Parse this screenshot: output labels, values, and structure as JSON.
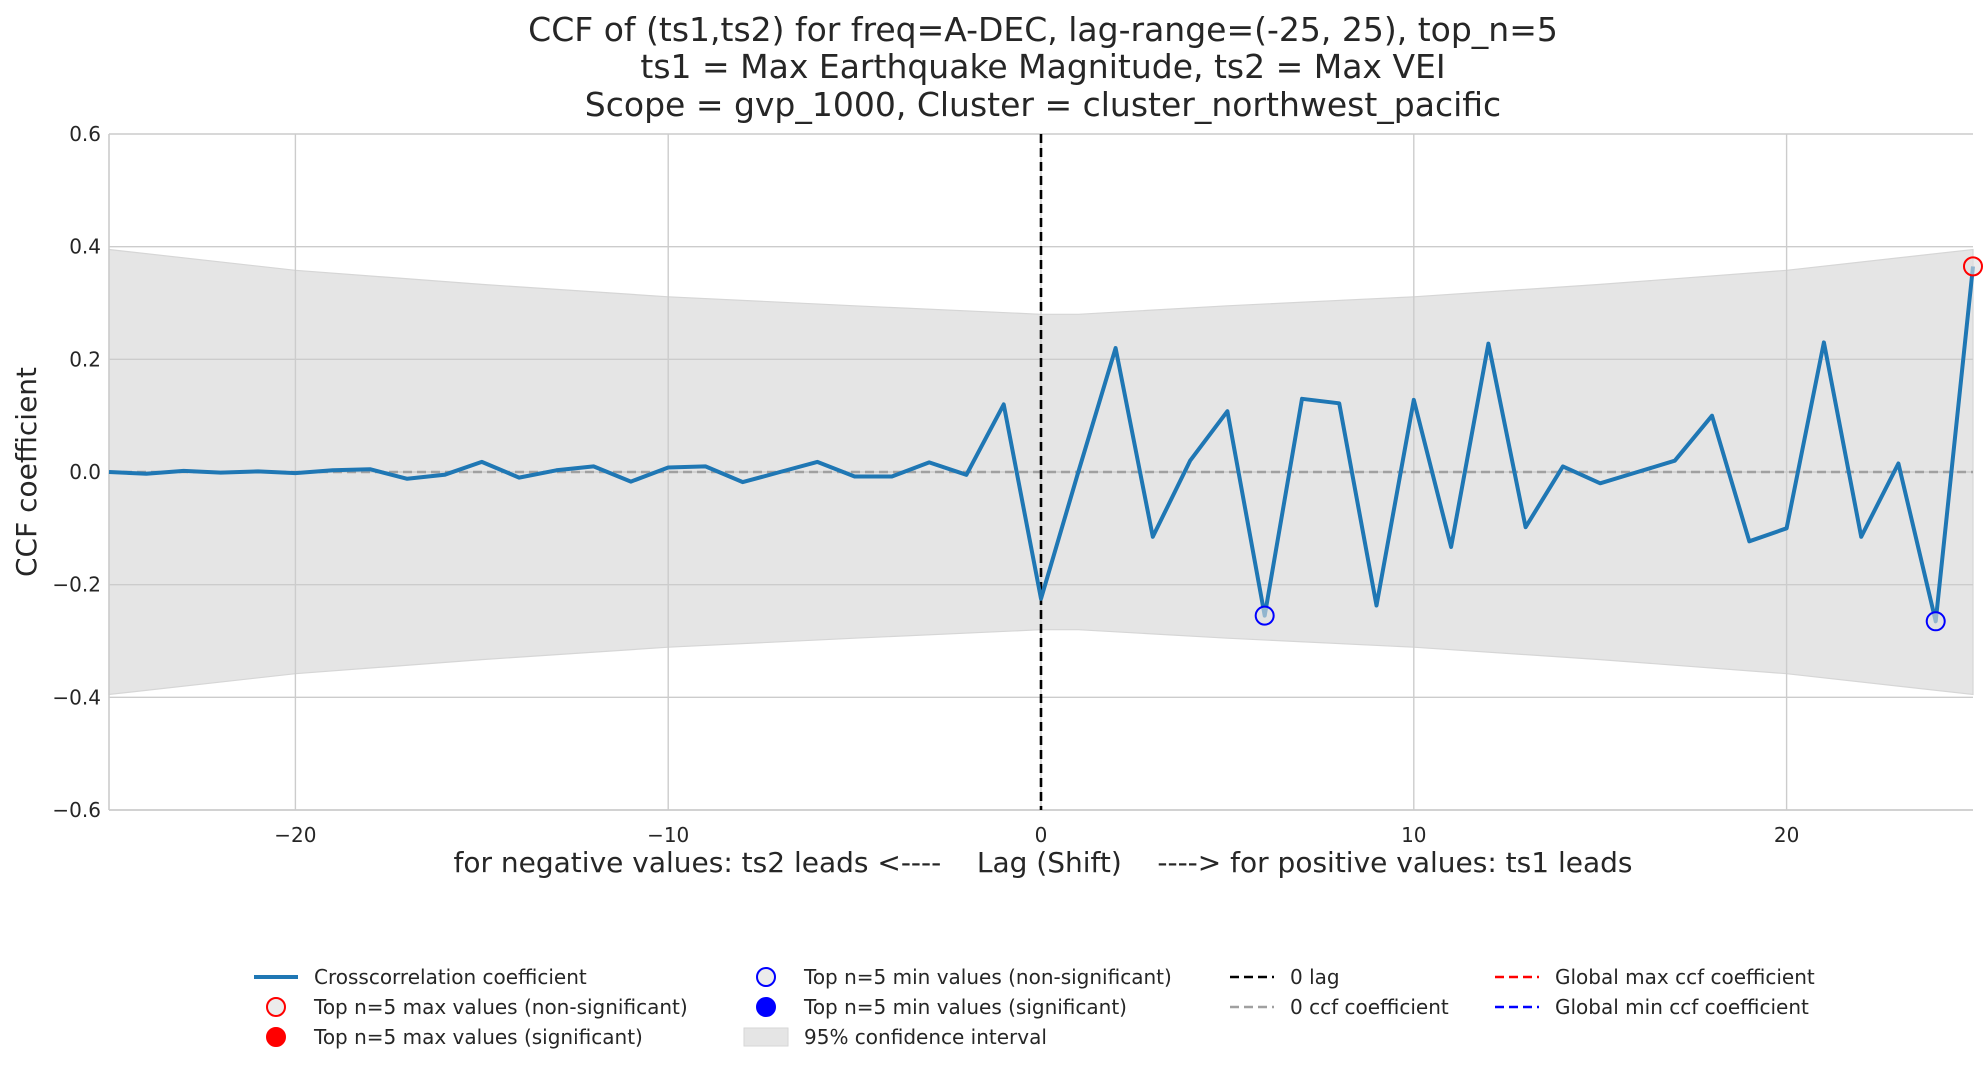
{
  "chart_data": {
    "type": "line",
    "title_lines": [
      "CCF of (ts1,ts2) for freq=A-DEC, lag-range=(-25, 25), top_n=5",
      "ts1 = Max Earthquake Magnitude, ts2 = Max VEI",
      "Scope = gvp_1000, Cluster = cluster_northwest_pacific"
    ],
    "xlabel": "for negative values: ts2 leads <----    Lag (Shift)    ----> for positive values: ts1 leads",
    "ylabel": "CCF coefficient",
    "xlim": [
      -25,
      25
    ],
    "ylim": [
      -0.6,
      0.6
    ],
    "xticks": [
      -20,
      -10,
      0,
      10,
      20
    ],
    "xtick_labels": [
      "−20",
      "−10",
      "0",
      "10",
      "20"
    ],
    "yticks": [
      -0.6,
      -0.4,
      -0.2,
      0.0,
      0.2,
      0.4,
      0.6
    ],
    "ytick_labels": [
      "−0.6",
      "−0.4",
      "−0.2",
      "0.0",
      "0.2",
      "0.4",
      "0.6"
    ],
    "grid": true,
    "legend_placement": "bottom-center",
    "series": [
      {
        "name": "Crosscorrelation coefficient",
        "color": "#1f77b4",
        "x": [
          -25,
          -24,
          -23,
          -22,
          -21,
          -20,
          -19,
          -18,
          -17,
          -16,
          -15,
          -14,
          -13,
          -12,
          -11,
          -10,
          -9,
          -8,
          -7,
          -6,
          -5,
          -4,
          -3,
          -2,
          -1,
          0,
          1,
          2,
          3,
          4,
          5,
          6,
          7,
          8,
          9,
          10,
          11,
          12,
          13,
          14,
          15,
          16,
          17,
          18,
          19,
          20,
          21,
          22,
          23,
          24,
          25
        ],
        "values": [
          0.0,
          -0.003,
          0.002,
          -0.001,
          0.001,
          -0.002,
          0.003,
          0.005,
          -0.012,
          -0.005,
          0.018,
          -0.01,
          0.003,
          0.01,
          -0.017,
          0.008,
          0.01,
          -0.018,
          0.0,
          0.018,
          -0.008,
          -0.008,
          0.017,
          -0.005,
          0.12,
          -0.225,
          0.0,
          0.22,
          -0.115,
          0.02,
          0.108,
          -0.255,
          0.13,
          0.122,
          -0.237,
          0.128,
          -0.133,
          0.228,
          -0.098,
          0.01,
          -0.02,
          0.0,
          0.02,
          0.1,
          -0.123,
          -0.1,
          0.23,
          -0.115,
          0.015,
          -0.265,
          0.365
        ]
      }
    ],
    "confidence_interval": {
      "name": "95% confidence interval",
      "color": "#e5e5e5",
      "x": [
        -25,
        -20,
        -15,
        -10,
        -5,
        0,
        1,
        5,
        10,
        15,
        20,
        25
      ],
      "upper": [
        0.395,
        0.358,
        0.333,
        0.311,
        0.295,
        0.28,
        0.28,
        0.295,
        0.311,
        0.333,
        0.358,
        0.395
      ],
      "lower": [
        -0.395,
        -0.358,
        -0.333,
        -0.311,
        -0.295,
        -0.28,
        -0.28,
        -0.295,
        -0.311,
        -0.333,
        -0.358,
        -0.395
      ]
    },
    "top_max_points": [
      {
        "x": 25,
        "y": 0.365,
        "significant": false
      }
    ],
    "top_min_points": [
      {
        "x": 6,
        "y": -0.255,
        "significant": false
      },
      {
        "x": 24,
        "y": -0.265,
        "significant": false
      }
    ],
    "reference_lines": {
      "zero_lag_x": 0,
      "zero_ccf_y": 0.0
    },
    "legend_entries": [
      {
        "label": "Crosscorrelation coefficient",
        "kind": "line",
        "color": "#1f77b4"
      },
      {
        "label": "Top n=5 max values (non-significant)",
        "kind": "marker-open",
        "color": "#ff0000"
      },
      {
        "label": "Top n=5 max values (significant)",
        "kind": "marker-filled",
        "color": "#ff0000"
      },
      {
        "label": "Top n=5 min values (non-significant)",
        "kind": "marker-open",
        "color": "#0000ff"
      },
      {
        "label": "Top n=5 min values (significant)",
        "kind": "marker-filled",
        "color": "#0000ff"
      },
      {
        "label": "95% confidence interval",
        "kind": "patch",
        "color": "#e5e5e5"
      },
      {
        "label": "0 lag",
        "kind": "dash",
        "color": "#000000"
      },
      {
        "label": "0 ccf coefficient",
        "kind": "dash",
        "color": "#a0a0a0"
      },
      {
        "label": "Global max ccf coefficient",
        "kind": "dash",
        "color": "#ff0000"
      },
      {
        "label": "Global min ccf coefficient",
        "kind": "dash",
        "color": "#0000ff"
      }
    ]
  }
}
